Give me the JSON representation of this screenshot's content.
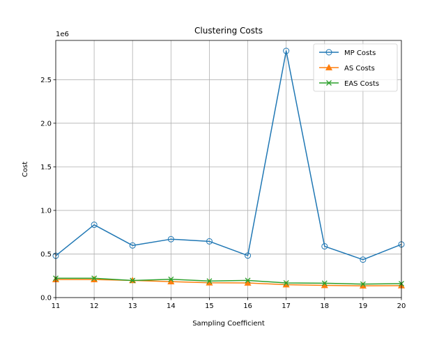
{
  "chart_data": {
    "type": "line",
    "title": "Clustering Costs",
    "xlabel": "Sampling Coefficient",
    "ylabel": "Cost",
    "y_offset_text": "1e6",
    "x": [
      11,
      12,
      13,
      14,
      15,
      16,
      17,
      18,
      19,
      20
    ],
    "xlim": [
      11,
      20
    ],
    "ylim": [
      0,
      2950000
    ],
    "x_ticks": [
      11,
      12,
      13,
      14,
      15,
      16,
      17,
      18,
      19,
      20
    ],
    "x_tick_labels": [
      "11",
      "12",
      "13",
      "14",
      "15",
      "16",
      "17",
      "18",
      "19",
      "20"
    ],
    "y_ticks": [
      0,
      500000,
      1000000,
      1500000,
      2000000,
      2500000
    ],
    "y_tick_labels": [
      "0.0",
      "0.5",
      "1.0",
      "1.5",
      "2.0",
      "2.5"
    ],
    "grid": true,
    "legend_position": "top-right",
    "series": [
      {
        "name": "MP Costs",
        "color": "#1f77b4",
        "marker": "circle-open",
        "values": [
          480000,
          835000,
          598000,
          670000,
          645000,
          482000,
          2830000,
          588000,
          435000,
          610000
        ]
      },
      {
        "name": "AS Costs",
        "color": "#ff7f0e",
        "marker": "triangle",
        "values": [
          207000,
          207000,
          197000,
          183000,
          170000,
          168000,
          148000,
          140000,
          135000,
          137000
        ]
      },
      {
        "name": "EAS Costs",
        "color": "#2ca02c",
        "marker": "x",
        "values": [
          222000,
          222000,
          196000,
          210000,
          190000,
          197000,
          168000,
          165000,
          155000,
          160000
        ]
      }
    ]
  }
}
